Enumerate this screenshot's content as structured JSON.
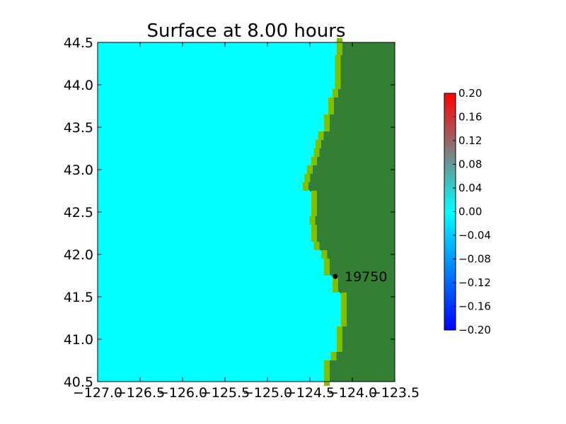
{
  "chart_data": {
    "type": "heatmap",
    "title": "Surface at 8.00 hours",
    "xlim": [
      -127.0,
      -123.5
    ],
    "ylim": [
      40.5,
      44.5
    ],
    "x_ticks": [
      "−127.0",
      "−126.5",
      "−126.0",
      "−125.5",
      "−125.0",
      "−124.5",
      "−124.0",
      "−123.5"
    ],
    "y_ticks": [
      "40.5",
      "41.0",
      "41.5",
      "42.0",
      "42.5",
      "43.0",
      "43.5",
      "44.0",
      "44.5"
    ],
    "colorbar": {
      "min": -0.2,
      "max": 0.2,
      "ticks": [
        "−0.20",
        "−0.16",
        "−0.12",
        "−0.08",
        "−0.04",
        "0.00",
        "0.04",
        "0.08",
        "0.12",
        "0.16",
        "0.20"
      ],
      "colors": [
        "#0000ff",
        "#00ffff",
        "#ff0000"
      ]
    },
    "sea_color": "#00ffff",
    "land_color": "#337f33",
    "shore_color": "#7fbf00",
    "coastline": [
      [
        44.5,
        -124.15
      ],
      [
        44.4,
        -124.15
      ],
      [
        44.3,
        -124.17
      ],
      [
        44.2,
        -124.17
      ],
      [
        44.1,
        -124.17
      ],
      [
        44.0,
        -124.17
      ],
      [
        43.9,
        -124.2
      ],
      [
        43.8,
        -124.25
      ],
      [
        43.7,
        -124.25
      ],
      [
        43.6,
        -124.3
      ],
      [
        43.5,
        -124.3
      ],
      [
        43.4,
        -124.37
      ],
      [
        43.3,
        -124.4
      ],
      [
        43.2,
        -124.42
      ],
      [
        43.1,
        -124.45
      ],
      [
        43.0,
        -124.5
      ],
      [
        42.9,
        -124.53
      ],
      [
        42.8,
        -124.55
      ],
      [
        42.7,
        -124.45
      ],
      [
        42.6,
        -124.45
      ],
      [
        42.5,
        -124.45
      ],
      [
        42.4,
        -124.47
      ],
      [
        42.3,
        -124.45
      ],
      [
        42.2,
        -124.45
      ],
      [
        42.1,
        -124.42
      ],
      [
        42.0,
        -124.33
      ],
      [
        41.9,
        -124.3
      ],
      [
        41.8,
        -124.3
      ],
      [
        41.7,
        -124.2
      ],
      [
        41.6,
        -124.2
      ],
      [
        41.5,
        -124.1
      ],
      [
        41.4,
        -124.1
      ],
      [
        41.3,
        -124.1
      ],
      [
        41.2,
        -124.1
      ],
      [
        41.1,
        -124.15
      ],
      [
        41.0,
        -124.15
      ],
      [
        40.9,
        -124.15
      ],
      [
        40.8,
        -124.22
      ],
      [
        40.7,
        -124.3
      ],
      [
        40.6,
        -124.3
      ],
      [
        40.5,
        -124.3
      ]
    ],
    "gauge": {
      "lon": -124.2,
      "lat": 41.74,
      "label": "19750"
    }
  }
}
